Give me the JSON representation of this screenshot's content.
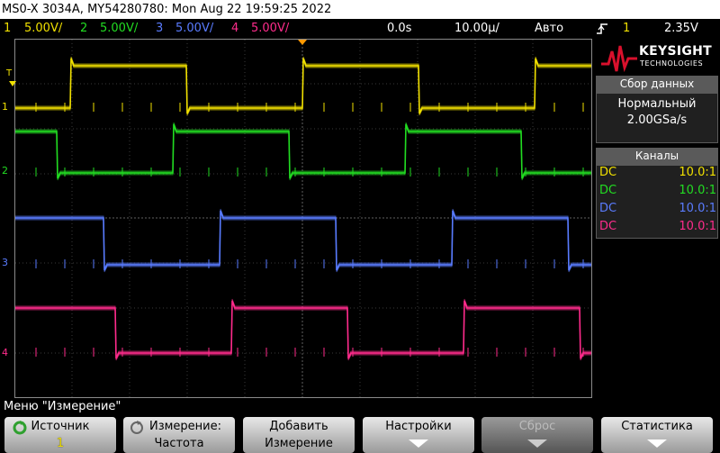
{
  "title_bar": "MS0-X 3034A, MY54280780: Mon Aug 22 19:59:25 2022",
  "status": {
    "channels": [
      {
        "num": "1",
        "scale": "5.00V/",
        "color": "#f0e000"
      },
      {
        "num": "2",
        "scale": "5.00V/",
        "color": "#22dd22"
      },
      {
        "num": "3",
        "scale": "5.00V/",
        "color": "#5a7cff"
      },
      {
        "num": "4",
        "scale": "5.00V/",
        "color": "#ff2c8c"
      }
    ],
    "delay": "0.0s",
    "timebase": "10.00µ/",
    "mode": "Авто",
    "trigger_icon": "rising-edge-icon",
    "trigger_channel": "1",
    "trigger_level": "2.35V"
  },
  "logo": {
    "line1": "KEYSIGHT",
    "line2": "TECHNOLOGIES"
  },
  "acquisition": {
    "header": "Сбор данных",
    "mode": "Нормальный",
    "rate": "2.00GSa/s"
  },
  "channels_panel": {
    "header": "Каналы",
    "rows": [
      {
        "coupling": "DC",
        "probe": "10.0:1",
        "color": "#f0e000"
      },
      {
        "coupling": "DC",
        "probe": "10.0:1",
        "color": "#22dd22"
      },
      {
        "coupling": "DC",
        "probe": "10.0:1",
        "color": "#5a7cff"
      },
      {
        "coupling": "DC",
        "probe": "10.0:1",
        "color": "#ff2c8c"
      }
    ]
  },
  "waveform_markers": {
    "trigger_level": "T",
    "ch1": "1",
    "ch2": "2",
    "ch3": "3",
    "ch4": "4"
  },
  "menu_title": "Меню \"Измерение\"",
  "softkeys": [
    {
      "line1": "Источник",
      "line2": "1",
      "icon": "rotate-knob-icon",
      "enabled": true
    },
    {
      "line1": "Измерение:",
      "line2": "Частота",
      "icon": "rotate-knob-icon",
      "enabled": true
    },
    {
      "line1": "Добавить",
      "line2": "Измерение",
      "enabled": true
    },
    {
      "line1": "Настройки",
      "icon": "down-arrow-icon",
      "enabled": true
    },
    {
      "line1": "Сброс",
      "icon": "down-arrow-icon",
      "enabled": false
    },
    {
      "line1": "Статистика",
      "icon": "down-arrow-icon",
      "enabled": true
    }
  ]
}
